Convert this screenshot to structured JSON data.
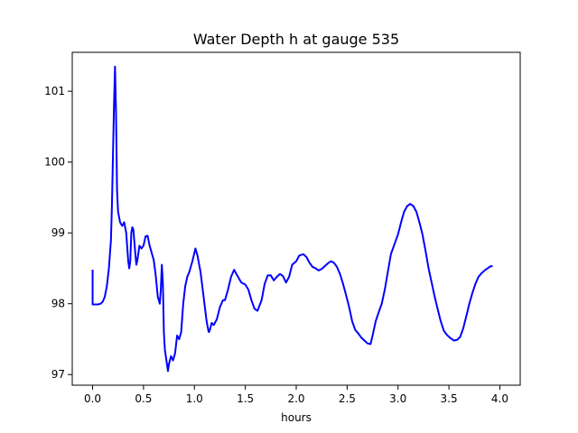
{
  "chart_data": {
    "type": "line",
    "title": "Water Depth h at gauge 535",
    "xlabel": "hours",
    "ylabel": "",
    "xlim": [
      -0.2,
      4.2
    ],
    "ylim": [
      96.85,
      101.55
    ],
    "xticks": [
      0.0,
      0.5,
      1.0,
      1.5,
      2.0,
      2.5,
      3.0,
      3.5,
      4.0
    ],
    "xtick_labels": [
      "0.0",
      "0.5",
      "1.0",
      "1.5",
      "2.0",
      "2.5",
      "3.0",
      "3.5",
      "4.0"
    ],
    "yticks": [
      97,
      98,
      99,
      100,
      101
    ],
    "ytick_labels": [
      "97",
      "98",
      "99",
      "100",
      "101"
    ],
    "grid": false,
    "series": [
      {
        "color": "#0000ff",
        "points": [
          [
            0.0,
            98.48
          ],
          [
            0.0,
            97.99
          ],
          [
            0.05,
            97.99
          ],
          [
            0.08,
            98.0
          ],
          [
            0.1,
            98.03
          ],
          [
            0.12,
            98.1
          ],
          [
            0.14,
            98.25
          ],
          [
            0.16,
            98.5
          ],
          [
            0.18,
            98.9
          ],
          [
            0.19,
            99.4
          ],
          [
            0.2,
            100.1
          ],
          [
            0.21,
            100.8
          ],
          [
            0.22,
            101.35
          ],
          [
            0.23,
            100.7
          ],
          [
            0.24,
            99.6
          ],
          [
            0.25,
            99.3
          ],
          [
            0.27,
            99.15
          ],
          [
            0.29,
            99.1
          ],
          [
            0.31,
            99.15
          ],
          [
            0.33,
            99.0
          ],
          [
            0.35,
            98.6
          ],
          [
            0.36,
            98.5
          ],
          [
            0.37,
            98.6
          ],
          [
            0.38,
            99.0
          ],
          [
            0.39,
            99.08
          ],
          [
            0.4,
            99.05
          ],
          [
            0.42,
            98.7
          ],
          [
            0.43,
            98.55
          ],
          [
            0.44,
            98.62
          ],
          [
            0.46,
            98.82
          ],
          [
            0.48,
            98.78
          ],
          [
            0.5,
            98.82
          ],
          [
            0.52,
            98.95
          ],
          [
            0.54,
            98.96
          ],
          [
            0.56,
            98.82
          ],
          [
            0.58,
            98.72
          ],
          [
            0.6,
            98.62
          ],
          [
            0.62,
            98.4
          ],
          [
            0.64,
            98.1
          ],
          [
            0.66,
            98.0
          ],
          [
            0.67,
            98.2
          ],
          [
            0.68,
            98.55
          ],
          [
            0.69,
            98.3
          ],
          [
            0.7,
            97.6
          ],
          [
            0.71,
            97.35
          ],
          [
            0.73,
            97.15
          ],
          [
            0.74,
            97.05
          ],
          [
            0.75,
            97.15
          ],
          [
            0.77,
            97.26
          ],
          [
            0.79,
            97.2
          ],
          [
            0.81,
            97.3
          ],
          [
            0.83,
            97.55
          ],
          [
            0.85,
            97.5
          ],
          [
            0.87,
            97.6
          ],
          [
            0.89,
            98.0
          ],
          [
            0.91,
            98.25
          ],
          [
            0.93,
            98.38
          ],
          [
            0.95,
            98.45
          ],
          [
            0.98,
            98.6
          ],
          [
            1.0,
            98.72
          ],
          [
            1.01,
            98.78
          ],
          [
            1.03,
            98.68
          ],
          [
            1.06,
            98.45
          ],
          [
            1.09,
            98.1
          ],
          [
            1.12,
            97.75
          ],
          [
            1.14,
            97.6
          ],
          [
            1.15,
            97.62
          ],
          [
            1.17,
            97.73
          ],
          [
            1.19,
            97.7
          ],
          [
            1.22,
            97.78
          ],
          [
            1.25,
            97.95
          ],
          [
            1.28,
            98.05
          ],
          [
            1.3,
            98.05
          ],
          [
            1.33,
            98.2
          ],
          [
            1.36,
            98.38
          ],
          [
            1.39,
            98.48
          ],
          [
            1.42,
            98.4
          ],
          [
            1.46,
            98.3
          ],
          [
            1.5,
            98.27
          ],
          [
            1.53,
            98.2
          ],
          [
            1.56,
            98.05
          ],
          [
            1.59,
            97.93
          ],
          [
            1.62,
            97.9
          ],
          [
            1.66,
            98.05
          ],
          [
            1.69,
            98.28
          ],
          [
            1.72,
            98.4
          ],
          [
            1.75,
            98.4
          ],
          [
            1.78,
            98.33
          ],
          [
            1.81,
            98.38
          ],
          [
            1.84,
            98.42
          ],
          [
            1.87,
            98.39
          ],
          [
            1.9,
            98.3
          ],
          [
            1.93,
            98.38
          ],
          [
            1.96,
            98.55
          ],
          [
            2.0,
            98.6
          ],
          [
            2.03,
            98.68
          ],
          [
            2.07,
            98.7
          ],
          [
            2.1,
            98.66
          ],
          [
            2.13,
            98.58
          ],
          [
            2.16,
            98.52
          ],
          [
            2.19,
            98.5
          ],
          [
            2.22,
            98.47
          ],
          [
            2.25,
            98.49
          ],
          [
            2.28,
            98.53
          ],
          [
            2.31,
            98.57
          ],
          [
            2.34,
            98.6
          ],
          [
            2.37,
            98.58
          ],
          [
            2.4,
            98.52
          ],
          [
            2.43,
            98.42
          ],
          [
            2.46,
            98.28
          ],
          [
            2.49,
            98.12
          ],
          [
            2.52,
            97.95
          ],
          [
            2.55,
            97.75
          ],
          [
            2.58,
            97.63
          ],
          [
            2.61,
            97.58
          ],
          [
            2.64,
            97.52
          ],
          [
            2.67,
            97.48
          ],
          [
            2.7,
            97.44
          ],
          [
            2.73,
            97.43
          ],
          [
            2.75,
            97.55
          ],
          [
            2.78,
            97.75
          ],
          [
            2.81,
            97.88
          ],
          [
            2.84,
            98.0
          ],
          [
            2.87,
            98.2
          ],
          [
            2.9,
            98.45
          ],
          [
            2.93,
            98.7
          ],
          [
            2.96,
            98.82
          ],
          [
            3.0,
            98.98
          ],
          [
            3.03,
            99.15
          ],
          [
            3.06,
            99.3
          ],
          [
            3.09,
            99.38
          ],
          [
            3.12,
            99.41
          ],
          [
            3.15,
            99.38
          ],
          [
            3.18,
            99.3
          ],
          [
            3.21,
            99.15
          ],
          [
            3.24,
            98.98
          ],
          [
            3.27,
            98.75
          ],
          [
            3.3,
            98.5
          ],
          [
            3.33,
            98.3
          ],
          [
            3.36,
            98.1
          ],
          [
            3.39,
            97.92
          ],
          [
            3.42,
            97.75
          ],
          [
            3.45,
            97.62
          ],
          [
            3.48,
            97.56
          ],
          [
            3.51,
            97.52
          ],
          [
            3.55,
            97.48
          ],
          [
            3.58,
            97.49
          ],
          [
            3.61,
            97.53
          ],
          [
            3.64,
            97.65
          ],
          [
            3.67,
            97.82
          ],
          [
            3.7,
            98.0
          ],
          [
            3.73,
            98.15
          ],
          [
            3.76,
            98.28
          ],
          [
            3.79,
            98.38
          ],
          [
            3.82,
            98.43
          ],
          [
            3.85,
            98.47
          ],
          [
            3.88,
            98.5
          ],
          [
            3.91,
            98.53
          ],
          [
            3.93,
            98.53
          ]
        ]
      }
    ]
  }
}
